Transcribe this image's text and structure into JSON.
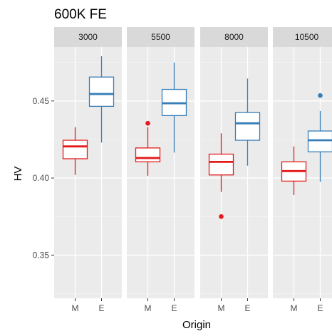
{
  "chart_data": {
    "type": "boxplot",
    "title": "600K FE",
    "xlabel": "Origin",
    "ylabel": "HV",
    "ylim": [
      0.322,
      0.485
    ],
    "yticks": [
      0.35,
      0.4,
      0.45
    ],
    "ytick_labels": [
      "0.35",
      "0.40",
      "0.45"
    ],
    "categories": [
      "M",
      "E"
    ],
    "colors": {
      "M": "#e41a1c",
      "E": "#377eb8"
    },
    "panels": [
      {
        "label": "3000",
        "boxes": [
          {
            "category": "M",
            "whisker_low": 0.402,
            "q1": 0.4125,
            "median": 0.4205,
            "q3": 0.4245,
            "whisker_high": 0.433,
            "outliers": []
          },
          {
            "category": "E",
            "whisker_low": 0.423,
            "q1": 0.4465,
            "median": 0.4545,
            "q3": 0.4655,
            "whisker_high": 0.479,
            "outliers": []
          }
        ]
      },
      {
        "label": "5500",
        "boxes": [
          {
            "category": "M",
            "whisker_low": 0.4015,
            "q1": 0.4105,
            "median": 0.413,
            "q3": 0.4195,
            "whisker_high": 0.433,
            "outliers": [
              0.4355
            ]
          },
          {
            "category": "E",
            "whisker_low": 0.4165,
            "q1": 0.4405,
            "median": 0.4485,
            "q3": 0.4575,
            "whisker_high": 0.475,
            "outliers": []
          }
        ]
      },
      {
        "label": "8000",
        "boxes": [
          {
            "category": "M",
            "whisker_low": 0.391,
            "q1": 0.402,
            "median": 0.4105,
            "q3": 0.4155,
            "whisker_high": 0.429,
            "outliers": [
              0.375
            ]
          },
          {
            "category": "E",
            "whisker_low": 0.408,
            "q1": 0.4245,
            "median": 0.4355,
            "q3": 0.4425,
            "whisker_high": 0.4645,
            "outliers": []
          }
        ]
      },
      {
        "label": "10500",
        "boxes": [
          {
            "category": "M",
            "whisker_low": 0.389,
            "q1": 0.398,
            "median": 0.4045,
            "q3": 0.4105,
            "whisker_high": 0.4205,
            "outliers": []
          },
          {
            "category": "E",
            "whisker_low": 0.3975,
            "q1": 0.417,
            "median": 0.4245,
            "q3": 0.4305,
            "whisker_high": 0.4435,
            "outliers": [
              0.4535
            ]
          }
        ]
      }
    ]
  }
}
